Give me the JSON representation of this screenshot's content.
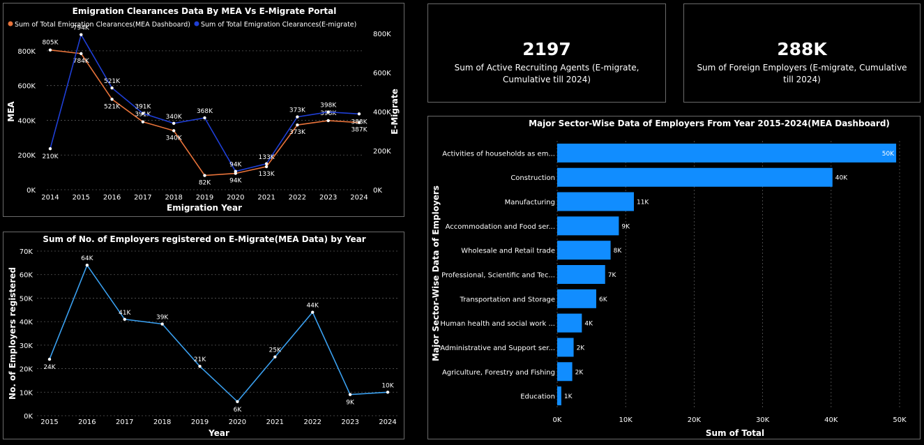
{
  "chart_data": [
    {
      "type": "line",
      "title": "Emigration Clearances Data By MEA Vs E-Migrate Portal",
      "xlabel": "Emigration Year",
      "ylabel": "MEA",
      "y2label": "E-Migrate",
      "x": [
        "2014",
        "2015",
        "2016",
        "2017",
        "2018",
        "2019",
        "2020",
        "2021",
        "2022",
        "2023",
        "2024"
      ],
      "ylim": [
        0,
        900000
      ],
      "y2lim": [
        0,
        800000
      ],
      "yticks": [
        "0K",
        "200K",
        "400K",
        "600K",
        "800K"
      ],
      "y2ticks": [
        "0K",
        "200K",
        "400K",
        "600K",
        "800K"
      ],
      "legend_position": "top-left",
      "series": [
        {
          "name": "Sum of Total Emigration Clearances(MEA Dashboard)",
          "axis": "left",
          "color": "#e8733a",
          "values": [
            805000,
            784000,
            521000,
            391000,
            340000,
            82000,
            94000,
            133000,
            373000,
            398000,
            387000
          ],
          "labels": [
            "805K",
            "784K",
            "521K",
            "391K",
            "340K",
            "82K",
            "94K",
            "133K",
            "373K",
            "398K",
            "387K"
          ]
        },
        {
          "name": "Sum of Total Emigration Clearances(E-migrate)",
          "axis": "right",
          "color": "#1f3fd6",
          "values": [
            210000,
            794000,
            521000,
            391000,
            340000,
            368000,
            94000,
            133000,
            373000,
            398000,
            388000
          ],
          "labels": [
            "210K",
            "794K",
            "521K",
            "391K",
            "340K",
            "368K",
            "94K",
            "133K",
            "373K",
            "398K",
            "388K"
          ]
        }
      ]
    },
    {
      "type": "line",
      "title": "Sum of No. of Employers registered on E-Migrate(MEA Data) by Year",
      "xlabel": "Year",
      "ylabel": "No. of Employers registered",
      "x": [
        "2015",
        "2016",
        "2017",
        "2018",
        "2019",
        "2020",
        "2021",
        "2022",
        "2023",
        "2024"
      ],
      "ylim": [
        0,
        70000
      ],
      "yticks": [
        "0K",
        "10K",
        "20K",
        "30K",
        "40K",
        "50K",
        "60K",
        "70K"
      ],
      "series": [
        {
          "color": "#3aa0f0",
          "values": [
            24000,
            64000,
            41000,
            39000,
            21000,
            6000,
            25000,
            44000,
            9000,
            10000
          ],
          "labels": [
            "24K",
            "64K",
            "41K",
            "39K",
            "21K",
            "6K",
            "25K",
            "44K",
            "9K",
            "10K"
          ]
        }
      ]
    },
    {
      "type": "bar",
      "orientation": "horizontal",
      "title": "Major Sector-Wise Data of Employers From Year 2015-2024(MEA Dashboard)",
      "xlabel": "Sum of Total",
      "ylabel": "Major Sector-Wise Data of Employers",
      "xlim": [
        0,
        50000
      ],
      "xticks": [
        "0K",
        "10K",
        "20K",
        "30K",
        "40K",
        "50K"
      ],
      "bar_color": "#118dff",
      "categories": [
        "Activities of households as em...",
        "Construction",
        "Manufacturing",
        "Accommodation and Food ser...",
        "Wholesale and Retail trade",
        "Professional, Scientific and Tec...",
        "Transportation and Storage",
        "Human health and social work ...",
        "Administrative and Support ser...",
        "Agriculture, Forestry and Fishing",
        "Education"
      ],
      "values": [
        49500,
        40200,
        11200,
        9000,
        7800,
        7000,
        5700,
        3600,
        2400,
        2200,
        600
      ],
      "labels": [
        "50K",
        "40K",
        "11K",
        "9K",
        "8K",
        "7K",
        "6K",
        "4K",
        "2K",
        "2K",
        "1K"
      ]
    }
  ],
  "kpis": {
    "agents": {
      "value": "2197",
      "label": "Sum of Active Recruiting Agents (E-migrate, Cumulative till 2024)"
    },
    "employers": {
      "value": "288K",
      "label": "Sum of Foreign Employers (E-migrate, Cumulative till 2024)"
    }
  }
}
